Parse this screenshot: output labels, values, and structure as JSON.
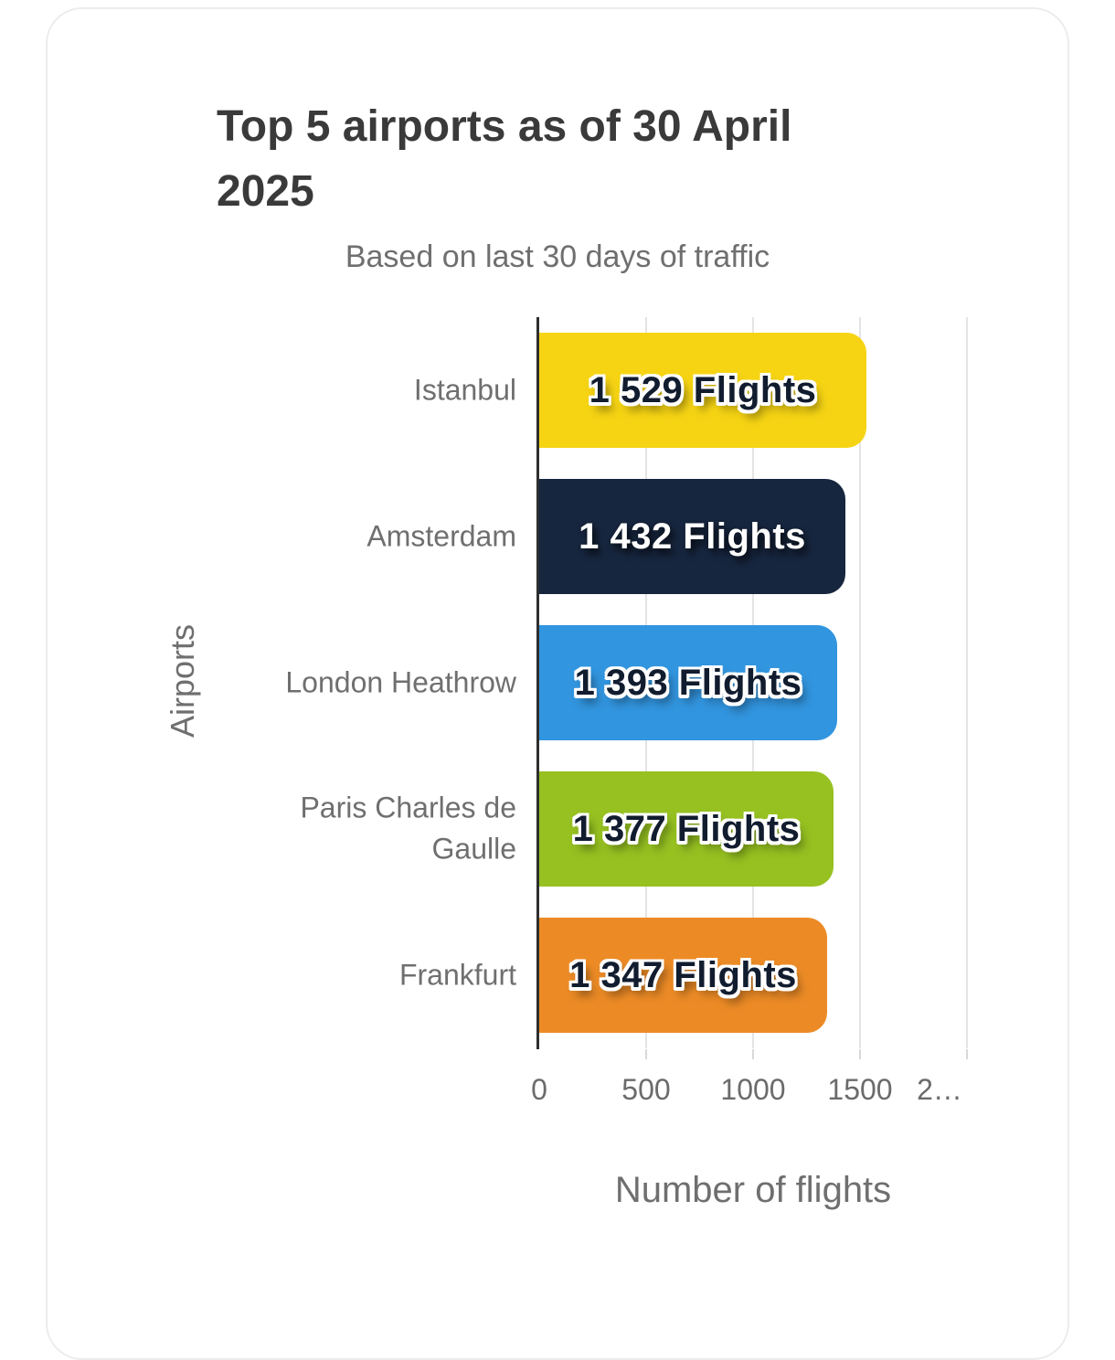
{
  "header": {
    "title_line1": "Top 5 airports as of 30 April",
    "title_line2": "2025",
    "subtitle": "Based on last 30 days of traffic"
  },
  "chart_data": {
    "type": "bar",
    "orientation": "horizontal",
    "title": "Top 5 airports as of 30 April 2025",
    "subtitle": "Based on last 30 days of traffic",
    "categories": [
      "Istanbul",
      "Amsterdam",
      "London Heathrow",
      "Paris Charles de Gaulle",
      "Frankfurt"
    ],
    "values": [
      1529,
      1432,
      1393,
      1377,
      1347
    ],
    "bar_labels": [
      "1 529 Flights",
      "1 432 Flights",
      "1 393 Flights",
      "1 377 Flights",
      "1 347 Flights"
    ],
    "bar_colors": [
      "#F6D414",
      "#17263F",
      "#3295DF",
      "#96C121",
      "#EC8B26"
    ],
    "bar_label_styles": [
      "dark",
      "light",
      "dark",
      "dark",
      "dark"
    ],
    "xlabel": "Number of flights",
    "ylabel": "Airports",
    "xlim": [
      0,
      2000
    ],
    "x_ticks": [
      0,
      500,
      1000,
      1500,
      2000
    ],
    "x_tick_labels": [
      "0",
      "500",
      "1000",
      "1500",
      "2…"
    ],
    "grid": true,
    "legend": false,
    "colors": {
      "title_text": "#3a3a3a",
      "muted_text": "#6f6f6f",
      "axis_line": "#2e2e2e",
      "gridline": "#e4e4e4",
      "card_border": "#ececec",
      "background": "#ffffff"
    }
  }
}
